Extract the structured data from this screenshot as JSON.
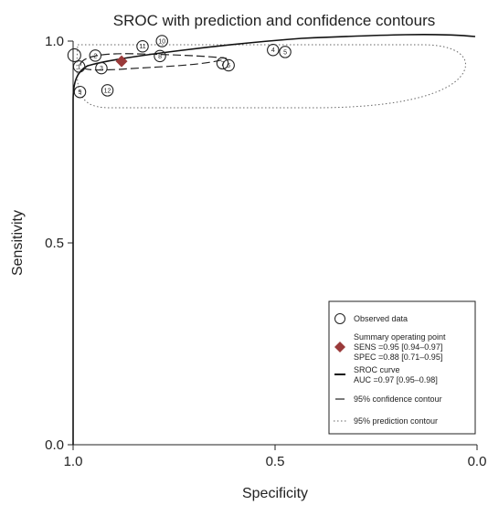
{
  "chart_data": {
    "type": "scatter",
    "title": "SROC with prediction and confidence contours",
    "xlabel": "Specificity",
    "ylabel": "Sensitivity",
    "xlim": [
      1.0,
      0.0
    ],
    "ylim": [
      0.0,
      1.0
    ],
    "x_reversed": true,
    "x_ticks": [
      "1.0",
      "0.5",
      "0.0"
    ],
    "y_ticks": [
      "0.0",
      "0.5",
      "1.0"
    ],
    "observed": [
      {
        "label": "",
        "spec": 0.997,
        "sens": 0.965
      },
      {
        "label": "1",
        "spec": 0.985,
        "sens": 0.937
      },
      {
        "label": "2",
        "spec": 0.945,
        "sens": 0.964
      },
      {
        "label": "3",
        "spec": 0.93,
        "sens": 0.933
      },
      {
        "label": "4",
        "spec": 0.505,
        "sens": 0.978
      },
      {
        "label": "5",
        "spec": 0.475,
        "sens": 0.973
      },
      {
        "label": "6",
        "spec": 0.615,
        "sens": 0.94
      },
      {
        "label": "7",
        "spec": 0.63,
        "sens": 0.945
      },
      {
        "label": "8",
        "spec": 0.785,
        "sens": 0.963
      },
      {
        "label": "9",
        "spec": 0.983,
        "sens": 0.874
      },
      {
        "label": "10",
        "spec": 0.78,
        "sens": 1.0
      },
      {
        "label": "11",
        "spec": 0.828,
        "sens": 0.987
      },
      {
        "label": "12",
        "spec": 0.915,
        "sens": 0.878
      }
    ],
    "summary_point": {
      "spec": 0.88,
      "sens": 0.95
    },
    "legend": {
      "position": "bottom-right",
      "observed": "Observed data",
      "summary_lines": [
        "Summary operating point",
        "SENS =0.95 [0.94–0.97]",
        "SPEC =0.88 [0.71–0.95]"
      ],
      "sroc_lines": [
        "SROC curve",
        "AUC =0.97 [0.95–0.98]"
      ],
      "confidence": "95% confidence contour",
      "prediction": "95% prediction contour"
    },
    "colors": {
      "summary_point": "#9a3a3a",
      "lines": "#222222"
    }
  }
}
